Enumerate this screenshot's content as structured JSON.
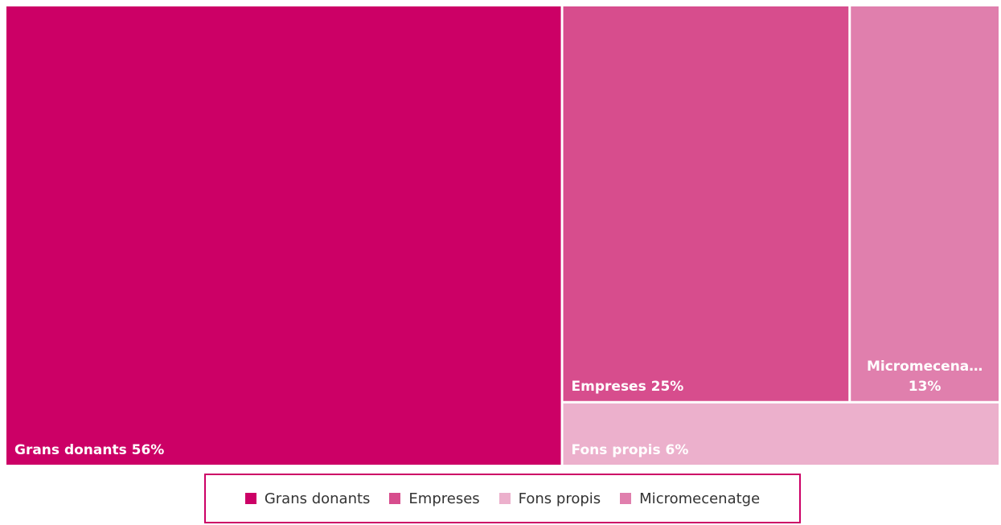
{
  "chart_data": {
    "type": "treemap",
    "title": "",
    "items": [
      {
        "name": "Grans donants",
        "value": 56,
        "label": "Grans donants 56%",
        "color": "#cc0066"
      },
      {
        "name": "Empreses",
        "value": 25,
        "label": "Empreses 25%",
        "color": "#d74d8d"
      },
      {
        "name": "Fons propis",
        "value": 6,
        "label": "Fons propis 6%",
        "color": "#ecb0cc"
      },
      {
        "name": "Micromecenatge",
        "value": 13,
        "label_lines": [
          "Micromecena…",
          "13%"
        ],
        "color": "#e07fad"
      }
    ],
    "legend": {
      "position": "bottom",
      "entries": [
        "Grans donants",
        "Empreses",
        "Fons propis",
        "Micromecenatge"
      ]
    }
  }
}
